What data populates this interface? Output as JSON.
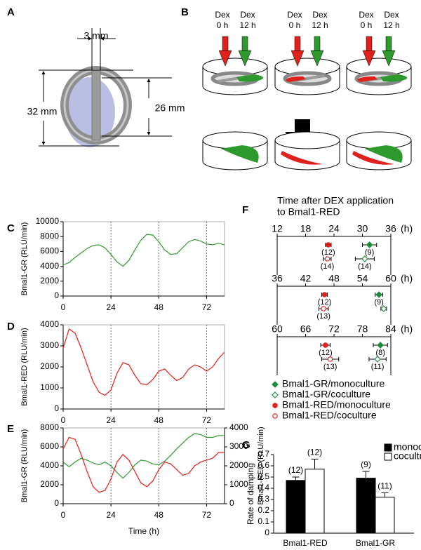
{
  "diagrams": {
    "A": {
      "panel": "A",
      "width_label": "3 mm",
      "outer_label": "32 mm",
      "inner_label": "26 mm"
    },
    "B": {
      "panel": "B",
      "dishes": [
        {
          "red_label": [
            "Dex",
            "0 h"
          ],
          "green_label": [
            "Dex",
            "12 h"
          ]
        },
        {
          "red_label": [
            "Dex",
            "0 h"
          ],
          "green_label": [
            "Dex",
            "12 h"
          ]
        },
        {
          "red_label": [
            "Dex",
            "0 h"
          ],
          "green_label": [
            "Dex",
            "12 h"
          ]
        }
      ]
    }
  },
  "chart_data": [
    {
      "type": "line",
      "panel": "C",
      "ylabel": "Bmal1-GR (RLU/min)",
      "x": [
        0,
        3,
        6,
        9,
        12,
        15,
        18,
        21,
        24,
        27,
        30,
        33,
        36,
        39,
        42,
        45,
        48,
        51,
        54,
        57,
        60,
        63,
        66,
        69,
        72,
        75,
        78,
        81
      ],
      "xlim": [
        0,
        81
      ],
      "xticks": [
        0,
        24,
        48,
        72
      ],
      "xgrid": true,
      "ylim": [
        0,
        10000
      ],
      "yticks": [
        0,
        2000,
        4000,
        6000,
        8000,
        10000
      ],
      "series": [
        {
          "color": "#2e9a2e",
          "values": [
            4200,
            4500,
            5200,
            5800,
            6400,
            6800,
            6900,
            6500,
            5600,
            4600,
            4000,
            4800,
            6200,
            7500,
            8300,
            8200,
            7300,
            6200,
            5600,
            5700,
            6500,
            7300,
            7600,
            7400,
            7000,
            6900,
            7100,
            6900
          ]
        }
      ]
    },
    {
      "type": "line",
      "panel": "D",
      "ylabel": "Bmal1-RED (RLU/min)",
      "x": [
        0,
        3,
        6,
        9,
        12,
        15,
        18,
        21,
        24,
        27,
        30,
        33,
        36,
        39,
        42,
        45,
        48,
        51,
        54,
        57,
        60,
        63,
        66,
        69,
        72,
        75,
        78,
        81
      ],
      "xlim": [
        0,
        81
      ],
      "xticks": [
        0,
        24,
        48,
        72
      ],
      "xgrid": true,
      "ylim": [
        0,
        4000
      ],
      "yticks": [
        0,
        1000,
        2000,
        3000,
        4000
      ],
      "series": [
        {
          "color": "#e0201a",
          "values": [
            2900,
            3800,
            3600,
            2900,
            2100,
            1300,
            800,
            650,
            900,
            1700,
            2200,
            2100,
            1600,
            1200,
            1150,
            1400,
            1800,
            1900,
            1600,
            1350,
            1500,
            1900,
            2100,
            2000,
            1800,
            2000,
            2400,
            2700
          ]
        }
      ]
    },
    {
      "type": "line",
      "panel": "E",
      "ylabel": "Bmal1-GR (RLU/min)",
      "y2label": "Bmal1-RED (RLU/min)",
      "xlabel": "Time (h)",
      "x": [
        0,
        3,
        6,
        9,
        12,
        15,
        18,
        21,
        24,
        27,
        30,
        33,
        36,
        39,
        42,
        45,
        48,
        51,
        54,
        57,
        60,
        63,
        66,
        69,
        72,
        75,
        78,
        81
      ],
      "xlim": [
        0,
        81
      ],
      "xticks": [
        0,
        24,
        48,
        72
      ],
      "xgrid": true,
      "ylim": [
        0,
        8000
      ],
      "yticks": [
        0,
        2000,
        4000,
        6000,
        8000
      ],
      "y2lim": [
        0,
        4000
      ],
      "y2ticks": [
        0,
        1000,
        2000,
        3000,
        4000
      ],
      "series": [
        {
          "color": "#2e9a2e",
          "values": [
            4400,
            3900,
            4400,
            4800,
            4600,
            4300,
            4100,
            4400,
            4000,
            3300,
            2700,
            3300,
            4100,
            4600,
            4500,
            4200,
            4100,
            4500,
            5100,
            5800,
            6400,
            7000,
            7400,
            7300,
            7000,
            7000,
            7200,
            7200
          ]
        },
        {
          "color": "#e0201a",
          "axis": "y2",
          "values": [
            2900,
            3500,
            3400,
            2600,
            1700,
            900,
            600,
            700,
            1300,
            2200,
            2600,
            2300,
            1700,
            1100,
            900,
            1200,
            1800,
            2200,
            2100,
            1800,
            1500,
            1600,
            2000,
            2200,
            2300,
            2400,
            2700,
            2700
          ]
        }
      ]
    },
    {
      "type": "dot",
      "panel": "F",
      "title_lines": [
        "Time after DEX application",
        "to Bmal1-RED"
      ],
      "x_unit": "(h)",
      "series": [
        {
          "name": "Bmal1-GR/monoculture",
          "color": "#1f8a3a",
          "marker": "diamond",
          "filled": true
        },
        {
          "name": "Bmal1-GR/coculture",
          "color": "#1f8a3a",
          "marker": "diamond",
          "filled": false
        },
        {
          "name": "Bmal1-RED/monoculture",
          "color": "#e0201a",
          "marker": "circle",
          "filled": true
        },
        {
          "name": "Bmal1-RED/coculture",
          "color": "#e0201a",
          "marker": "circle",
          "filled": false
        }
      ],
      "rows": [
        {
          "xlim": [
            12,
            36
          ],
          "xticks": [
            12,
            18,
            24,
            30,
            36
          ],
          "values": [
            31.5,
            30.5,
            22.8,
            22.6
          ],
          "errors": [
            1.5,
            2.0,
            0.6,
            0.8
          ],
          "n_labels": [
            "(9)",
            "(14)",
            "(12)",
            "(14)"
          ]
        },
        {
          "xlim": [
            36,
            60
          ],
          "xticks": [
            36,
            42,
            48,
            54,
            60
          ],
          "values": [
            57.5,
            58.5,
            46.0,
            45.8
          ],
          "errors": [
            0.8,
            0.6,
            0.6,
            1.0
          ],
          "n_labels": [
            "(9)",
            null,
            "(12)",
            "(13)"
          ]
        },
        {
          "xlim": [
            60,
            84
          ],
          "xticks": [
            60,
            66,
            72,
            78,
            84
          ],
          "values": [
            81.8,
            81.2,
            70.2,
            71.2
          ],
          "errors": [
            1.5,
            1.8,
            1.0,
            1.8
          ],
          "n_labels": [
            "(8)",
            "(11)",
            "(12)",
            "(13)"
          ]
        }
      ]
    },
    {
      "type": "bar",
      "panel": "G",
      "ylabel": "Rate of damping",
      "categories": [
        "Bmal1-RED",
        "Bmal1-GR"
      ],
      "ylim": [
        0,
        0.7
      ],
      "yticks": [
        0,
        0.1,
        0.2,
        0.3,
        0.4,
        0.5,
        0.6,
        0.7
      ],
      "series": [
        {
          "name": "monoculture",
          "color": "#000000",
          "values": [
            0.47,
            0.49
          ],
          "errors": [
            0.03,
            0.06
          ],
          "n_labels": [
            "(12)",
            "(9)"
          ]
        },
        {
          "name": "coculture",
          "color": "#ffffff",
          "values": [
            0.57,
            0.32
          ],
          "errors": [
            0.09,
            0.04
          ],
          "n_labels": [
            "(12)",
            "(11)"
          ]
        }
      ]
    }
  ]
}
